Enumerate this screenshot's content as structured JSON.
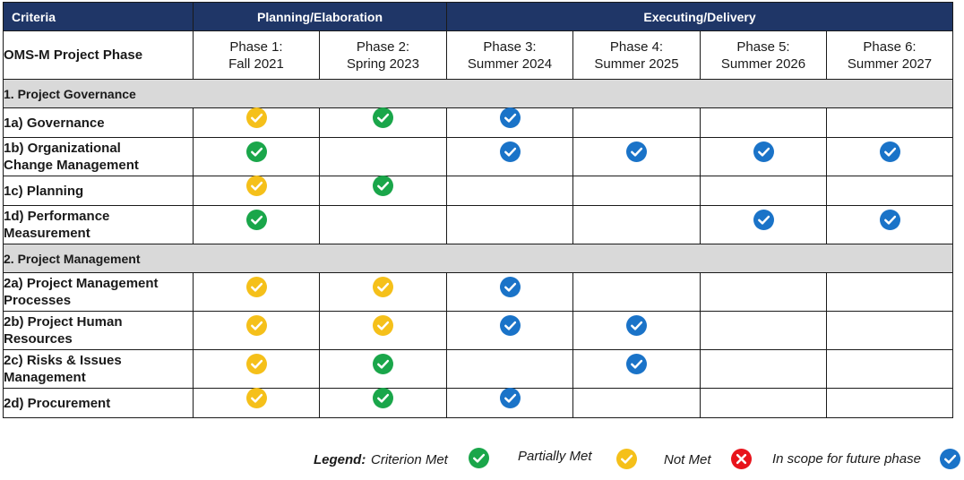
{
  "colors": {
    "header_bg": "#1f3667",
    "section_bg": "#d9d9d9",
    "met": "#1aa64a",
    "partial": "#f5c01a",
    "not_met": "#e8141c",
    "future": "#1a73c8"
  },
  "header": {
    "criteria": "Criteria",
    "planning": "Planning/Elaboration",
    "executing": "Executing/Delivery"
  },
  "phase_row": {
    "label": "OMS-M Project Phase",
    "phases": [
      {
        "line1": "Phase 1:",
        "line2": "Fall 2021"
      },
      {
        "line1": "Phase 2:",
        "line2": "Spring 2023"
      },
      {
        "line1": "Phase 3:",
        "line2": "Summer 2024"
      },
      {
        "line1": "Phase 4:",
        "line2": "Summer 2025"
      },
      {
        "line1": "Phase 5:",
        "line2": "Summer 2026"
      },
      {
        "line1": "Phase 6:",
        "line2": "Summer 2027"
      }
    ]
  },
  "sections": [
    {
      "title": "1. Project Governance",
      "rows": [
        {
          "line1": "1a) Governance",
          "line2": "",
          "status": [
            "partial",
            "met",
            "future",
            "",
            "",
            ""
          ]
        },
        {
          "line1": "1b) Organizational",
          "line2": "Change Management",
          "status": [
            "met",
            "",
            "future",
            "future",
            "future",
            "future"
          ]
        },
        {
          "line1": "1c) Planning",
          "line2": "",
          "status": [
            "partial",
            "met",
            "",
            "",
            "",
            ""
          ]
        },
        {
          "line1": "1d) Performance",
          "line2": "Measurement",
          "status": [
            "met",
            "",
            "",
            "",
            "future",
            "future"
          ]
        }
      ]
    },
    {
      "title": "2. Project Management",
      "rows": [
        {
          "line1": "2a) Project Management",
          "line2": "Processes",
          "status": [
            "partial",
            "partial",
            "future",
            "",
            "",
            ""
          ]
        },
        {
          "line1": "2b) Project Human",
          "line2": "Resources",
          "status": [
            "partial",
            "partial",
            "future",
            "future",
            "",
            ""
          ]
        },
        {
          "line1": "2c) Risks & Issues",
          "line2": "Management",
          "status": [
            "partial",
            "met",
            "",
            "future",
            "",
            ""
          ]
        },
        {
          "line1": "2d) Procurement",
          "line2": "",
          "status": [
            "partial",
            "met",
            "future",
            "",
            "",
            ""
          ]
        }
      ]
    }
  ],
  "legend": {
    "title": "Legend:",
    "met": "Criterion Met",
    "partial": "Partially Met",
    "not_met": "Not Met",
    "future": "In scope for future phase"
  }
}
